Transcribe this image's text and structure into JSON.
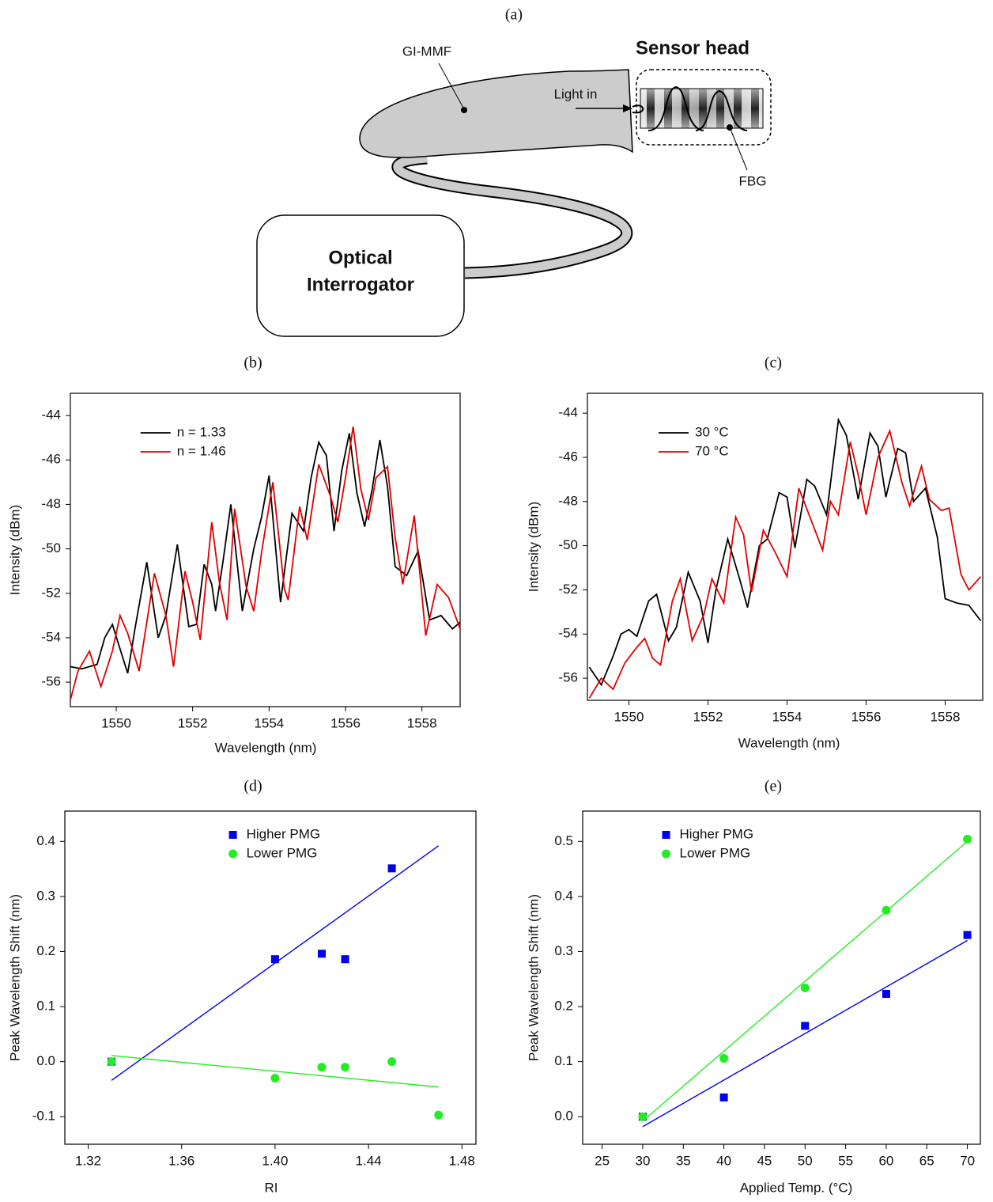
{
  "diagram": {
    "panel_label": "(a)",
    "fiber_label": "GI-MMF",
    "sensor_head": "Sensor head",
    "light_in": "Light in",
    "fbg_label": "FBG",
    "interrogator_line1": "Optical",
    "interrogator_line2": "Interrogator"
  },
  "chart_data": [
    {
      "type": "line",
      "panel_label": "(b)",
      "xlabel": "Wavelength (nm)",
      "ylabel": "Intensity (dBm)",
      "legend_loc": "upper left",
      "xlim": [
        1548.8,
        1559.0
      ],
      "ylim": [
        -57.1,
        -43.0
      ],
      "xticks": [
        1550,
        1552,
        1554,
        1556,
        1558
      ],
      "yticks": [
        -44,
        -46,
        -48,
        -50,
        -52,
        -54,
        -56
      ],
      "series": [
        {
          "name": "n = 1.33",
          "color": "#000000",
          "x": [
            1548.8,
            1549.1,
            1549.5,
            1549.7,
            1549.9,
            1550.1,
            1550.3,
            1550.5,
            1550.8,
            1551.1,
            1551.3,
            1551.6,
            1551.9,
            1552.1,
            1552.3,
            1552.5,
            1552.6,
            1552.8,
            1553.0,
            1553.3,
            1553.6,
            1553.8,
            1554.0,
            1554.3,
            1554.6,
            1554.9,
            1555.1,
            1555.3,
            1555.5,
            1555.7,
            1555.9,
            1556.1,
            1556.3,
            1556.5,
            1556.7,
            1556.9,
            1557.1,
            1557.3,
            1557.6,
            1557.9,
            1558.2,
            1558.5,
            1558.8,
            1559.0
          ],
          "values": [
            -55.3,
            -55.4,
            -55.2,
            -54.0,
            -53.4,
            -54.5,
            -55.6,
            -53.5,
            -50.6,
            -54.0,
            -53.0,
            -49.8,
            -53.5,
            -53.4,
            -50.7,
            -51.6,
            -52.8,
            -50.5,
            -48.0,
            -52.8,
            -50.0,
            -48.6,
            -46.7,
            -52.4,
            -48.4,
            -49.2,
            -46.8,
            -45.2,
            -45.8,
            -49.2,
            -46.5,
            -44.8,
            -47.5,
            -49.0,
            -47.3,
            -45.1,
            -47.2,
            -50.8,
            -51.2,
            -50.1,
            -53.2,
            -53.0,
            -53.6,
            -53.3
          ]
        },
        {
          "name": "n = 1.46",
          "color": "#e00000",
          "x": [
            1548.8,
            1549.0,
            1549.3,
            1549.6,
            1549.9,
            1550.1,
            1550.3,
            1550.6,
            1551.0,
            1551.3,
            1551.5,
            1551.8,
            1552.0,
            1552.2,
            1552.5,
            1552.7,
            1552.9,
            1553.1,
            1553.4,
            1553.6,
            1553.8,
            1554.1,
            1554.4,
            1554.5,
            1554.8,
            1555.0,
            1555.3,
            1555.6,
            1555.8,
            1556.0,
            1556.2,
            1556.4,
            1556.6,
            1556.8,
            1557.1,
            1557.3,
            1557.5,
            1557.8,
            1558.1,
            1558.4,
            1558.7,
            1559.0
          ],
          "values": [
            -56.8,
            -55.5,
            -54.6,
            -56.2,
            -54.6,
            -53.0,
            -53.8,
            -55.5,
            -51.1,
            -53.0,
            -55.3,
            -51.0,
            -52.4,
            -54.1,
            -48.8,
            -51.5,
            -53.2,
            -48.2,
            -51.7,
            -52.8,
            -50.2,
            -47.0,
            -51.8,
            -52.3,
            -48.1,
            -49.6,
            -46.2,
            -47.6,
            -48.8,
            -46.8,
            -44.5,
            -47.3,
            -48.7,
            -46.8,
            -46.3,
            -49.5,
            -51.6,
            -48.5,
            -53.9,
            -51.6,
            -52.2,
            -53.6
          ]
        }
      ]
    },
    {
      "type": "line",
      "panel_label": "(c)",
      "xlabel": "Wavelength (nm)",
      "ylabel": "Intensity (dBm)",
      "legend_loc": "upper left",
      "xlim": [
        1548.95,
        1558.95
      ],
      "ylim": [
        -57.0,
        -43.1
      ],
      "xticks": [
        1550,
        1552,
        1554,
        1556,
        1558
      ],
      "yticks": [
        -44,
        -46,
        -48,
        -50,
        -52,
        -54,
        -56
      ],
      "series": [
        {
          "name": "30 °C",
          "color": "#000000",
          "x": [
            1549.0,
            1549.3,
            1549.6,
            1549.8,
            1550.0,
            1550.2,
            1550.5,
            1550.7,
            1551.0,
            1551.2,
            1551.5,
            1551.8,
            1552.0,
            1552.2,
            1552.5,
            1552.8,
            1553.0,
            1553.3,
            1553.5,
            1553.8,
            1554.0,
            1554.2,
            1554.5,
            1554.7,
            1555.0,
            1555.3,
            1555.5,
            1555.8,
            1556.1,
            1556.3,
            1556.5,
            1556.8,
            1557.0,
            1557.2,
            1557.5,
            1557.8,
            1558.0,
            1558.3,
            1558.6,
            1558.9
          ],
          "values": [
            -55.5,
            -56.3,
            -55.0,
            -54.0,
            -53.8,
            -54.1,
            -52.5,
            -52.2,
            -54.3,
            -53.7,
            -51.2,
            -52.5,
            -54.4,
            -52.0,
            -49.7,
            -51.5,
            -52.8,
            -50.0,
            -49.7,
            -47.6,
            -47.8,
            -50.1,
            -47.0,
            -47.3,
            -48.6,
            -44.3,
            -45.0,
            -47.9,
            -44.9,
            -45.5,
            -47.8,
            -45.6,
            -45.8,
            -48.0,
            -47.4,
            -49.6,
            -52.4,
            -52.6,
            -52.7,
            -53.4
          ]
        },
        {
          "name": "70 °C",
          "color": "#e00000",
          "x": [
            1549.0,
            1549.3,
            1549.6,
            1549.9,
            1550.2,
            1550.4,
            1550.6,
            1550.8,
            1551.1,
            1551.3,
            1551.6,
            1551.9,
            1552.1,
            1552.4,
            1552.7,
            1552.9,
            1553.1,
            1553.4,
            1553.7,
            1554.0,
            1554.3,
            1554.6,
            1554.9,
            1555.1,
            1555.3,
            1555.6,
            1555.8,
            1556.0,
            1556.3,
            1556.6,
            1556.9,
            1557.1,
            1557.4,
            1557.6,
            1557.9,
            1558.1,
            1558.4,
            1558.6,
            1558.9
          ],
          "values": [
            -56.9,
            -56.0,
            -56.5,
            -55.3,
            -54.6,
            -54.2,
            -55.1,
            -55.4,
            -52.5,
            -51.5,
            -54.3,
            -53.1,
            -51.5,
            -52.6,
            -48.7,
            -49.5,
            -52.1,
            -49.3,
            -50.3,
            -51.4,
            -47.4,
            -48.8,
            -50.2,
            -48.0,
            -48.6,
            -45.3,
            -46.8,
            -48.6,
            -46.0,
            -44.8,
            -47.1,
            -48.2,
            -46.4,
            -47.9,
            -48.4,
            -48.3,
            -51.3,
            -52.0,
            -51.4
          ]
        }
      ]
    },
    {
      "type": "scatter",
      "panel_label": "(d)",
      "xlabel": "RI",
      "ylabel": "Peak Wavelength Shift (nm)",
      "legend_loc": "upper center",
      "xlim": [
        1.31,
        1.486
      ],
      "ylim": [
        -0.15,
        0.455
      ],
      "xticks": [
        1.32,
        1.36,
        {
          "value": 1.4,
          "label": "1.40"
        },
        1.44,
        1.48
      ],
      "yticks": [
        0.4,
        0.3,
        0.2,
        0.1,
        {
          "value": 0,
          "label": "0.0"
        },
        -0.1
      ],
      "series": [
        {
          "name": "Higher PMG",
          "color": "#0000ee",
          "marker": "square",
          "x": [
            1.33,
            1.4,
            1.42,
            1.43,
            1.45
          ],
          "values": [
            0,
            0.186,
            0.196,
            0.186,
            0.351
          ]
        },
        {
          "name": "Lower PMG",
          "color": "#22ee22",
          "marker": "circle",
          "x": [
            1.33,
            1.4,
            1.42,
            1.43,
            1.45,
            1.47
          ],
          "values": [
            0,
            -0.03,
            -0.01,
            -0.01,
            0,
            -0.097
          ]
        }
      ],
      "fits": [
        {
          "color": "#0000ee",
          "x": [
            1.33,
            1.47
          ],
          "values": [
            -0.034,
            0.392
          ]
        },
        {
          "color": "#22ee22",
          "x": [
            1.33,
            1.47
          ],
          "values": [
            0.011,
            -0.046
          ]
        }
      ]
    },
    {
      "type": "scatter",
      "panel_label": "(e)",
      "xlabel": "Applied Temp. (°C)",
      "ylabel": "Peak Wavelength Shift (nm)",
      "legend_loc": "upper left",
      "xlim": [
        22.6,
        71.6
      ],
      "ylim": [
        -0.05,
        0.555
      ],
      "xticks": [
        25,
        30,
        35,
        40,
        45,
        50,
        55,
        60,
        65,
        70
      ],
      "yticks": [
        0.5,
        0.4,
        0.3,
        0.2,
        0.1,
        {
          "value": 0,
          "label": "0.0"
        }
      ],
      "series": [
        {
          "name": "Higher PMG",
          "color": "#0000ee",
          "marker": "square",
          "x": [
            30,
            40,
            50,
            60,
            70
          ],
          "values": [
            0,
            0.035,
            0.165,
            0.223,
            0.33
          ]
        },
        {
          "name": "Lower PMG",
          "color": "#22ee22",
          "marker": "circle",
          "x": [
            30,
            40,
            50,
            60,
            70
          ],
          "values": [
            0,
            0.106,
            0.234,
            0.375,
            0.504
          ]
        }
      ],
      "fits": [
        {
          "color": "#0000ee",
          "x": [
            30,
            70
          ],
          "values": [
            -0.018,
            0.32
          ]
        },
        {
          "color": "#22ee22",
          "x": [
            30,
            70
          ],
          "values": [
            -0.008,
            0.5
          ]
        }
      ]
    }
  ]
}
